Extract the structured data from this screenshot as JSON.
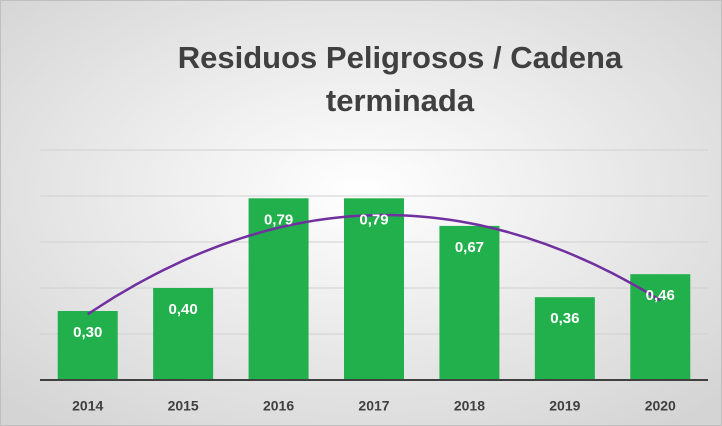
{
  "chart_data": {
    "type": "bar",
    "title_lines": [
      "Residuos Peligrosos / Cadena",
      "terminada"
    ],
    "categories": [
      "2014",
      "2015",
      "2016",
      "2017",
      "2018",
      "2019",
      "2020"
    ],
    "values": [
      0.3,
      0.4,
      0.79,
      0.79,
      0.67,
      0.36,
      0.46
    ],
    "value_labels": [
      "0,30",
      "0,40",
      "0,79",
      "0,79",
      "0,67",
      "0,36",
      "0,46"
    ],
    "color": "#21b04b",
    "ylim": [
      0,
      1
    ],
    "yticks": [
      0,
      0.2,
      0.4,
      0.6,
      0.8,
      1
    ],
    "grid": true,
    "trendline": {
      "type": "polynomial",
      "order": 2,
      "color": "#7030a0"
    }
  }
}
